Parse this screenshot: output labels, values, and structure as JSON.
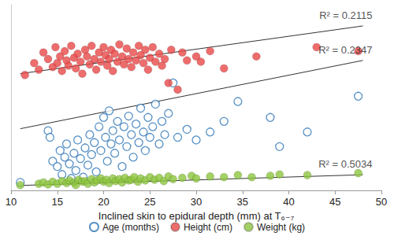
{
  "chart_data": {
    "type": "scatter",
    "x_label": "Inclined skin to epidural depth (mm) at T₆₋₇",
    "xlim": [
      10,
      50
    ],
    "xticks": [
      10,
      15,
      20,
      25,
      30,
      35,
      40,
      45,
      50
    ],
    "ylim": [
      0,
      140
    ],
    "tick_labels": "x",
    "grid": false,
    "legend": "bottom",
    "series": [
      {
        "name": "Age (months)",
        "color": "#2e75b6",
        "marker": "open_circle",
        "x": [
          11,
          14,
          14.2,
          14.5,
          15,
          15.3,
          15.5,
          15.8,
          16,
          16.3,
          16.5,
          16.8,
          17,
          17.2,
          17.5,
          17.8,
          18,
          18.3,
          18.5,
          18.7,
          19,
          19.2,
          19.5,
          19.7,
          20,
          20.2,
          20.4,
          20.6,
          20.8,
          21,
          21.2,
          21.5,
          21.7,
          22,
          22.2,
          22.5,
          22.7,
          23,
          23.2,
          23.5,
          23.8,
          24,
          24.3,
          24.5,
          24.8,
          25,
          25.3,
          25.6,
          26,
          26.3,
          26.6,
          27,
          27.5,
          28,
          29,
          30,
          31.5,
          33,
          34.5,
          38,
          39,
          42,
          47.5
        ],
        "values": [
          6,
          45,
          40,
          22,
          18,
          30,
          12,
          25,
          35,
          20,
          9,
          28,
          15,
          38,
          24,
          10,
          32,
          19,
          42,
          27,
          36,
          14,
          48,
          30,
          55,
          40,
          22,
          60,
          35,
          45,
          28,
          52,
          38,
          18,
          48,
          33,
          56,
          42,
          25,
          50,
          36,
          62,
          44,
          30,
          55,
          40,
          48,
          65,
          35,
          52,
          42,
          58,
          81,
          40,
          46,
          38,
          44,
          52,
          67,
          55,
          33,
          44,
          71
        ]
      },
      {
        "name": "Height (cm)",
        "color": "#e84848",
        "marker": "circle",
        "x": [
          11.5,
          12.5,
          13,
          13.5,
          14,
          14.5,
          14.8,
          15,
          15.3,
          15.5,
          15.8,
          16,
          16.2,
          16.5,
          16.8,
          17,
          17.2,
          17.5,
          17.7,
          18,
          18.2,
          18.5,
          18.7,
          19,
          19.2,
          19.5,
          19.7,
          20,
          20.2,
          20.4,
          20.6,
          20.8,
          21,
          21.2,
          21.5,
          21.7,
          22,
          22.2,
          22.5,
          22.7,
          23,
          23.2,
          23.5,
          23.8,
          24,
          24.3,
          24.5,
          24.8,
          25,
          25.3,
          25.6,
          26,
          26.3,
          26.6,
          27,
          27.3,
          28,
          28.5,
          29,
          30,
          30.5,
          31.5,
          33,
          36.5,
          43,
          47.5
        ],
        "values": [
          87,
          96,
          91,
          104,
          99,
          93,
          108,
          96,
          101,
          90,
          105,
          98,
          94,
          109,
          100,
          92,
          103,
          97,
          88,
          106,
          101,
          95,
          109,
          99,
          91,
          104,
          97,
          108,
          102,
          94,
          99,
          106,
          90,
          103,
          97,
          110,
          101,
          95,
          107,
          99,
          93,
          104,
          98,
          109,
          102,
          96,
          106,
          91,
          100,
          108,
          97,
          103,
          94,
          99,
          81,
          106,
          76,
          104,
          98,
          101,
          97,
          105,
          92,
          101,
          108,
          105
        ]
      },
      {
        "name": "Weight (kg)",
        "color": "#8dc63f",
        "marker": "circle",
        "x": [
          11,
          13,
          13.5,
          14,
          14.5,
          15,
          15.5,
          16,
          16.3,
          16.8,
          17,
          17.3,
          17.7,
          18,
          18.3,
          18.7,
          19,
          19.3,
          19.7,
          20,
          20.3,
          20.6,
          21,
          21.3,
          21.7,
          22,
          22.3,
          22.7,
          23,
          23.3,
          23.7,
          24,
          24.5,
          25,
          25.5,
          26,
          26.5,
          27,
          27.5,
          28.5,
          29.5,
          30,
          31.5,
          33,
          34.5,
          36,
          38,
          39,
          42,
          47.5
        ],
        "values": [
          4,
          5,
          6,
          4.5,
          6.5,
          5,
          7,
          5.5,
          7.5,
          6,
          4,
          8,
          6.5,
          7,
          5,
          8.5,
          6,
          7.5,
          9,
          6.5,
          8,
          5.5,
          9,
          7,
          8.5,
          6,
          9.5,
          7.5,
          8,
          10,
          6.5,
          9,
          7.5,
          10,
          8,
          9.5,
          7,
          10.5,
          8.5,
          9.5,
          11,
          9,
          10.5,
          10,
          11.5,
          10,
          11,
          12,
          11.5,
          13
        ]
      }
    ],
    "trendlines": [
      {
        "x": [
          11,
          48
        ],
        "values": [
          88,
          124
        ],
        "label": "R² = 0.2115"
      },
      {
        "x": [
          11,
          48
        ],
        "values": [
          46.5,
          98
        ],
        "label": "R² = 0.2347"
      },
      {
        "x": [
          11,
          48
        ],
        "values": [
          3.7,
          11.8
        ],
        "label": "R² = 0.5034"
      }
    ]
  }
}
